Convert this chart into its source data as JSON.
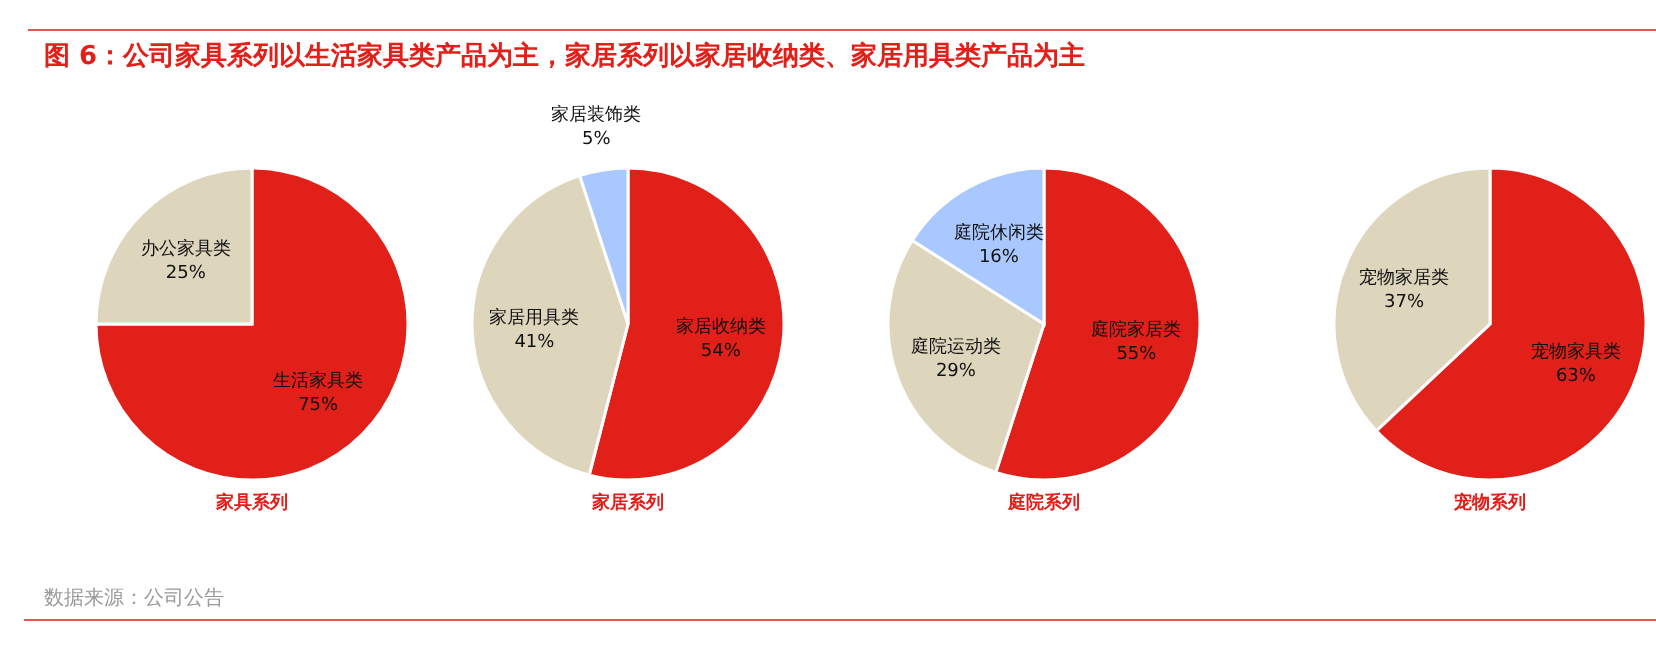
{
  "chart_data": [
    {
      "type": "other",
      "title": "图 6：公司家具系列以生活家具类产品为主，家居系列以家居收纳类、家居用具类产品为主",
      "annotations": [
        "数据来源：公司公告"
      ]
    },
    {
      "type": "pie",
      "title": "家具系列",
      "categories": [
        "生活家具类",
        "办公家具类"
      ],
      "values": [
        75,
        25
      ],
      "colors": [
        "#e2201a",
        "#ded5bd"
      ],
      "value_labels": [
        "75%",
        "25%"
      ]
    },
    {
      "type": "pie",
      "title": "家居系列",
      "categories": [
        "家居收纳类",
        "家居用具类",
        "家居装饰类"
      ],
      "values": [
        54,
        41,
        5
      ],
      "colors": [
        "#e2201a",
        "#ded5bd",
        "#a8c8ff"
      ],
      "value_labels": [
        "54%",
        "41%",
        "5%"
      ]
    },
    {
      "type": "pie",
      "title": "庭院系列",
      "categories": [
        "庭院家居类",
        "庭院运动类",
        "庭院休闲类"
      ],
      "values": [
        55,
        29,
        16
      ],
      "colors": [
        "#e2201a",
        "#ded5bd",
        "#a8c8ff"
      ],
      "value_labels": [
        "55%",
        "29%",
        "16%"
      ]
    },
    {
      "type": "pie",
      "title": "宠物系列",
      "categories": [
        "宠物家具类",
        "宠物家居类"
      ],
      "values": [
        63,
        37
      ],
      "colors": [
        "#e2201a",
        "#ded5bd"
      ],
      "value_labels": [
        "63%",
        "37%"
      ]
    }
  ]
}
